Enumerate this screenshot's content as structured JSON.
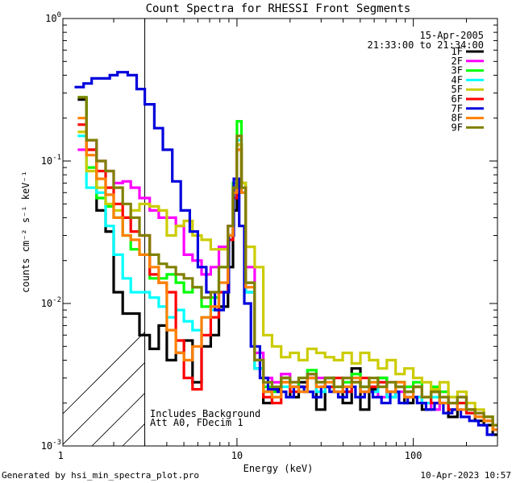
{
  "chart_data": {
    "type": "line",
    "title": "Count Spectra for RHESSI Front Segments",
    "xlabel": "Energy (keV)",
    "ylabel": "counts cm⁻² s⁻¹ keV⁻¹",
    "xscale": "log",
    "yscale": "log",
    "xlim": [
      1.03,
      300
    ],
    "ylim": [
      0.001,
      1.0
    ],
    "x_tick_labels": [
      {
        "value": 1,
        "label": "1"
      },
      {
        "value": 10,
        "label": "10"
      },
      {
        "value": 100,
        "label": "100"
      }
    ],
    "y_tick_labels": [
      {
        "value": 0.001,
        "mant": "10",
        "exp": "-3"
      },
      {
        "value": 0.01,
        "mant": "10",
        "exp": "-2"
      },
      {
        "value": 0.1,
        "mant": "10",
        "exp": "-1"
      },
      {
        "value": 1,
        "mant": "10",
        "exp": "0"
      }
    ],
    "date": "15-Apr-2005",
    "time_range": "21:33:00 to 21:34:00",
    "annotation_lines": [
      "Includes Background",
      "Att A0, FDecim 1"
    ],
    "hatched_region_keV": [
      1.03,
      3.0
    ],
    "series": [
      {
        "name": "1F",
        "color": "#000000",
        "x": [
          1.25,
          1.4,
          1.6,
          1.8,
          2.0,
          2.25,
          2.5,
          2.8,
          3.2,
          3.6,
          4.0,
          4.5,
          5.0,
          5.6,
          6.3,
          7.1,
          7.9,
          8.9,
          9.5,
          10.0,
          10.6,
          11.2,
          12.6,
          14.1,
          15.8,
          17.8,
          20,
          22.4,
          25.1,
          28.2,
          31.6,
          35.5,
          39.8,
          44.7,
          50.1,
          56.2,
          63.1,
          70.8,
          79.4,
          89.1,
          100,
          112,
          126,
          141,
          158,
          178,
          200,
          224,
          251,
          282
        ],
        "y": [
          0.27,
          0.12,
          0.045,
          0.032,
          0.012,
          0.0085,
          0.0085,
          0.006,
          0.0048,
          0.007,
          0.004,
          0.0045,
          0.0055,
          0.0028,
          0.005,
          0.006,
          0.0095,
          0.018,
          0.045,
          0.13,
          0.06,
          0.012,
          0.0035,
          0.002,
          0.0025,
          0.003,
          0.0022,
          0.0028,
          0.0032,
          0.0018,
          0.003,
          0.0024,
          0.002,
          0.0035,
          0.0018,
          0.0025,
          0.003,
          0.0022,
          0.0028,
          0.002,
          0.0022,
          0.0018,
          0.0024,
          0.002,
          0.0016,
          0.0022,
          0.0018,
          0.0015,
          0.0014,
          0.0012
        ]
      },
      {
        "name": "2F",
        "color": "#ff00ff",
        "x": [
          1.25,
          1.4,
          1.6,
          1.8,
          2.0,
          2.25,
          2.5,
          2.8,
          3.2,
          3.6,
          4.0,
          4.5,
          5.0,
          5.6,
          6.3,
          7.1,
          7.9,
          8.9,
          9.5,
          10.0,
          10.6,
          11.2,
          12.6,
          14.1,
          15.8,
          17.8,
          20,
          22.4,
          25.1,
          28.2,
          31.6,
          35.5,
          39.8,
          44.7,
          50.1,
          56.2,
          63.1,
          70.8,
          79.4,
          89.1,
          100,
          112,
          126,
          141,
          158,
          178,
          200,
          224,
          251,
          282
        ],
        "y": [
          0.12,
          0.14,
          0.1,
          0.085,
          0.07,
          0.072,
          0.065,
          0.055,
          0.045,
          0.04,
          0.04,
          0.035,
          0.022,
          0.02,
          0.016,
          0.018,
          0.025,
          0.035,
          0.06,
          0.13,
          0.07,
          0.018,
          0.0045,
          0.003,
          0.0028,
          0.0032,
          0.0028,
          0.0026,
          0.0032,
          0.003,
          0.0026,
          0.0024,
          0.003,
          0.0028,
          0.0024,
          0.0026,
          0.0022,
          0.0028,
          0.0024,
          0.0026,
          0.0022,
          0.002,
          0.0018,
          0.0024,
          0.002,
          0.0022,
          0.0018,
          0.0017,
          0.0016,
          0.0014
        ]
      },
      {
        "name": "3F",
        "color": "#00ff00",
        "x": [
          1.25,
          1.4,
          1.6,
          1.8,
          2.0,
          2.25,
          2.5,
          2.8,
          3.2,
          3.6,
          4.0,
          4.5,
          5.0,
          5.6,
          6.3,
          7.1,
          7.9,
          8.9,
          9.5,
          10.0,
          10.6,
          11.2,
          12.6,
          14.1,
          15.8,
          17.8,
          20,
          22.4,
          25.1,
          28.2,
          31.6,
          35.5,
          39.8,
          44.7,
          50.1,
          56.2,
          63.1,
          70.8,
          79.4,
          89.1,
          100,
          112,
          126,
          141,
          158,
          178,
          200,
          224,
          251,
          282
        ],
        "y": [
          0.28,
          0.09,
          0.055,
          0.048,
          0.04,
          0.03,
          0.024,
          0.022,
          0.015,
          0.015,
          0.016,
          0.014,
          0.012,
          0.013,
          0.0095,
          0.011,
          0.018,
          0.03,
          0.07,
          0.19,
          0.07,
          0.014,
          0.004,
          0.0026,
          0.0024,
          0.003,
          0.0026,
          0.003,
          0.0034,
          0.0028,
          0.003,
          0.0026,
          0.0028,
          0.0032,
          0.0026,
          0.0028,
          0.003,
          0.0024,
          0.0028,
          0.0026,
          0.0028,
          0.0022,
          0.0026,
          0.0024,
          0.0022,
          0.002,
          0.0018,
          0.0016,
          0.0016,
          0.0014
        ]
      },
      {
        "name": "4F",
        "color": "#00ffff",
        "x": [
          1.25,
          1.4,
          1.6,
          1.8,
          2.0,
          2.25,
          2.5,
          2.8,
          3.2,
          3.6,
          4.0,
          4.5,
          5.0,
          5.6,
          6.3,
          7.1,
          7.9,
          8.9,
          9.5,
          10.0,
          10.6,
          11.2,
          12.6,
          14.1,
          15.8,
          17.8,
          20,
          22.4,
          25.1,
          28.2,
          31.6,
          35.5,
          39.8,
          44.7,
          50.1,
          56.2,
          63.1,
          70.8,
          79.4,
          89.1,
          100,
          112,
          126,
          141,
          158,
          178,
          200,
          224,
          251,
          282
        ],
        "y": [
          0.15,
          0.065,
          0.06,
          0.035,
          0.022,
          0.015,
          0.012,
          0.012,
          0.011,
          0.0095,
          0.008,
          0.009,
          0.0075,
          0.0065,
          0.008,
          0.009,
          0.012,
          0.03,
          0.065,
          0.14,
          0.06,
          0.012,
          0.0035,
          0.0024,
          0.0022,
          0.0026,
          0.0024,
          0.0026,
          0.003,
          0.0024,
          0.0026,
          0.0024,
          0.0024,
          0.003,
          0.0026,
          0.0024,
          0.0028,
          0.0022,
          0.0026,
          0.0024,
          0.0022,
          0.002,
          0.0022,
          0.002,
          0.0018,
          0.002,
          0.0017,
          0.0016,
          0.0015,
          0.0013
        ]
      },
      {
        "name": "5F",
        "color": "#cccc00",
        "x": [
          1.25,
          1.4,
          1.6,
          1.8,
          2.0,
          2.25,
          2.5,
          2.8,
          3.2,
          3.6,
          4.0,
          4.5,
          5.0,
          5.6,
          6.3,
          7.1,
          7.9,
          8.9,
          9.5,
          10.0,
          10.6,
          11.2,
          12.6,
          14.1,
          15.8,
          17.8,
          20,
          22.4,
          25.1,
          28.2,
          31.6,
          35.5,
          39.8,
          44.7,
          50.1,
          56.2,
          63.1,
          70.8,
          79.4,
          89.1,
          100,
          112,
          126,
          141,
          158,
          178,
          200,
          224,
          251,
          282
        ],
        "y": [
          0.16,
          0.085,
          0.065,
          0.05,
          0.045,
          0.04,
          0.045,
          0.05,
          0.048,
          0.045,
          0.03,
          0.035,
          0.038,
          0.03,
          0.028,
          0.024,
          0.024,
          0.03,
          0.06,
          0.13,
          0.07,
          0.025,
          0.018,
          0.006,
          0.005,
          0.0042,
          0.0045,
          0.004,
          0.0048,
          0.0045,
          0.0042,
          0.004,
          0.0045,
          0.0038,
          0.0045,
          0.004,
          0.0035,
          0.004,
          0.0032,
          0.0035,
          0.003,
          0.0028,
          0.0025,
          0.0028,
          0.0022,
          0.0024,
          0.002,
          0.0018,
          0.0016,
          0.0014
        ]
      },
      {
        "name": "6F",
        "color": "#ff0000",
        "x": [
          1.25,
          1.4,
          1.6,
          1.8,
          2.0,
          2.25,
          2.5,
          2.8,
          3.2,
          3.6,
          4.0,
          4.5,
          5.0,
          5.6,
          6.3,
          7.1,
          7.9,
          8.9,
          9.5,
          10.0,
          10.6,
          11.2,
          12.6,
          14.1,
          15.8,
          17.8,
          20,
          22.4,
          25.1,
          28.2,
          31.6,
          35.5,
          39.8,
          44.7,
          50.1,
          56.2,
          63.1,
          70.8,
          79.4,
          89.1,
          100,
          112,
          126,
          141,
          158,
          178,
          200,
          224,
          251,
          282
        ],
        "y": [
          0.18,
          0.12,
          0.085,
          0.065,
          0.05,
          0.04,
          0.032,
          0.03,
          0.016,
          0.014,
          0.012,
          0.0055,
          0.003,
          0.0025,
          0.006,
          0.008,
          0.012,
          0.028,
          0.055,
          0.12,
          0.065,
          0.014,
          0.004,
          0.0022,
          0.002,
          0.0028,
          0.0024,
          0.0026,
          0.003,
          0.0028,
          0.0026,
          0.003,
          0.0024,
          0.0028,
          0.003,
          0.0026,
          0.0028,
          0.0024,
          0.0026,
          0.0024,
          0.0026,
          0.0022,
          0.002,
          0.0022,
          0.0018,
          0.002,
          0.0017,
          0.0016,
          0.0015,
          0.0013
        ]
      },
      {
        "name": "7F",
        "color": "#0000dd",
        "x": [
          1.2,
          1.35,
          1.5,
          1.7,
          1.9,
          2.1,
          2.4,
          2.7,
          3.0,
          3.4,
          3.8,
          4.3,
          4.8,
          5.4,
          6.0,
          6.7,
          7.5,
          8.4,
          9.0,
          9.6,
          10.3,
          11.0,
          12.0,
          13.5,
          15.0,
          17.0,
          19.0,
          21.0,
          24.0,
          27.0,
          30.0,
          33.5,
          37.5,
          42.0,
          47.0,
          53.0,
          59.0,
          66.0,
          74.0,
          83.0,
          93.0,
          105,
          118,
          132,
          148,
          166,
          186,
          208,
          234,
          262
        ],
        "y": [
          0.33,
          0.35,
          0.38,
          0.38,
          0.4,
          0.42,
          0.4,
          0.32,
          0.25,
          0.17,
          0.12,
          0.072,
          0.045,
          0.032,
          0.018,
          0.012,
          0.009,
          0.012,
          0.03,
          0.075,
          0.035,
          0.01,
          0.005,
          0.003,
          0.0025,
          0.0024,
          0.0022,
          0.0026,
          0.0024,
          0.0022,
          0.0026,
          0.0024,
          0.0022,
          0.0026,
          0.0022,
          0.0024,
          0.0022,
          0.002,
          0.0024,
          0.002,
          0.0022,
          0.002,
          0.0018,
          0.002,
          0.0017,
          0.0018,
          0.0016,
          0.0015,
          0.0014,
          0.0012
        ]
      },
      {
        "name": "8F",
        "color": "#ff8000",
        "x": [
          1.25,
          1.4,
          1.6,
          1.8,
          2.0,
          2.25,
          2.5,
          2.8,
          3.2,
          3.6,
          4.0,
          4.5,
          5.0,
          5.6,
          6.3,
          7.1,
          7.9,
          8.9,
          9.5,
          10.0,
          10.6,
          11.2,
          12.6,
          14.1,
          15.8,
          17.8,
          20,
          22.4,
          25.1,
          28.2,
          31.6,
          35.5,
          39.8,
          44.7,
          50.1,
          56.2,
          63.1,
          70.8,
          79.4,
          89.1,
          100,
          112,
          126,
          141,
          158,
          178,
          200,
          224,
          251,
          282
        ],
        "y": [
          0.2,
          0.11,
          0.075,
          0.058,
          0.04,
          0.03,
          0.028,
          0.022,
          0.018,
          0.014,
          0.0065,
          0.0045,
          0.004,
          0.005,
          0.008,
          0.0095,
          0.014,
          0.03,
          0.06,
          0.12,
          0.06,
          0.013,
          0.004,
          0.0024,
          0.0022,
          0.0028,
          0.0026,
          0.0024,
          0.003,
          0.0026,
          0.0028,
          0.0024,
          0.0026,
          0.003,
          0.0024,
          0.0028,
          0.0026,
          0.0024,
          0.0028,
          0.0022,
          0.0026,
          0.0022,
          0.0024,
          0.002,
          0.002,
          0.0018,
          0.0018,
          0.0016,
          0.0015,
          0.0013
        ]
      },
      {
        "name": "9F",
        "color": "#808000",
        "x": [
          1.25,
          1.4,
          1.6,
          1.8,
          2.0,
          2.25,
          2.5,
          2.8,
          3.2,
          3.6,
          4.0,
          4.5,
          5.0,
          5.6,
          6.3,
          7.1,
          7.9,
          8.9,
          9.5,
          10.0,
          10.6,
          11.2,
          12.6,
          14.1,
          15.8,
          17.8,
          20,
          22.4,
          25.1,
          28.2,
          31.6,
          35.5,
          39.8,
          44.7,
          50.1,
          56.2,
          63.1,
          70.8,
          79.4,
          89.1,
          100,
          112,
          126,
          141,
          158,
          178,
          200,
          224,
          251,
          282
        ],
        "y": [
          0.28,
          0.14,
          0.1,
          0.085,
          0.065,
          0.05,
          0.04,
          0.03,
          0.022,
          0.019,
          0.018,
          0.016,
          0.015,
          0.013,
          0.011,
          0.012,
          0.018,
          0.035,
          0.065,
          0.15,
          0.065,
          0.014,
          0.004,
          0.0028,
          0.0026,
          0.003,
          0.0028,
          0.003,
          0.0032,
          0.0028,
          0.003,
          0.0026,
          0.003,
          0.0028,
          0.0026,
          0.003,
          0.0026,
          0.0028,
          0.0026,
          0.0024,
          0.0026,
          0.0022,
          0.0024,
          0.0022,
          0.002,
          0.0022,
          0.0018,
          0.0017,
          0.0016,
          0.0014
        ]
      }
    ]
  },
  "footer": {
    "generated_by": "Generated by hsi_min_spectra_plot.pro",
    "timestamp": "10-Apr-2023 10:57"
  }
}
